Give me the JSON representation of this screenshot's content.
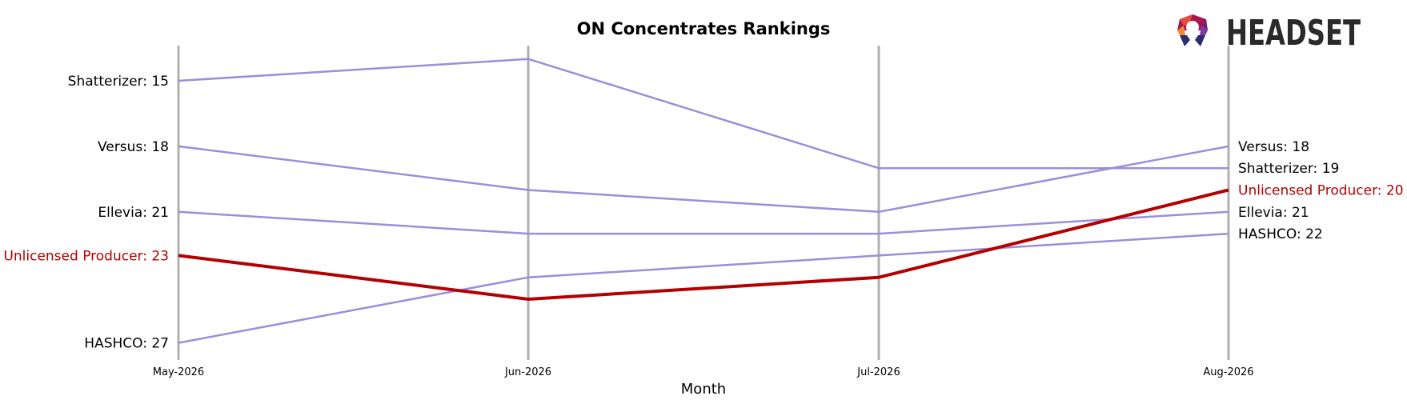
{
  "chart_data": {
    "type": "line",
    "title": "ON Concentrates Rankings",
    "xlabel": "Month",
    "ylabel": "",
    "categories": [
      "May-2026",
      "Jun-2026",
      "Jul-2026",
      "Aug-2026"
    ],
    "y_inverted": true,
    "ylim": [
      14,
      28
    ],
    "grid": false,
    "series": [
      {
        "name": "Shatterizer",
        "values": [
          15,
          14,
          19,
          19
        ],
        "color": "#9b8edb",
        "highlight": false
      },
      {
        "name": "Versus",
        "values": [
          18,
          20,
          21,
          18
        ],
        "color": "#9b8edb",
        "highlight": false
      },
      {
        "name": "Ellevia",
        "values": [
          21,
          22,
          22,
          21
        ],
        "color": "#9b8edb",
        "highlight": false
      },
      {
        "name": "Unlicensed Producer",
        "values": [
          23,
          25,
          24,
          20
        ],
        "color": "#b30000",
        "highlight": true
      },
      {
        "name": "HASHCO",
        "values": [
          27,
          24,
          23,
          22
        ],
        "color": "#9b8edb",
        "highlight": false
      }
    ],
    "left_labels": [
      {
        "series": "Shatterizer",
        "text": "Shatterizer: 15"
      },
      {
        "series": "Versus",
        "text": "Versus: 18"
      },
      {
        "series": "Ellevia",
        "text": "Ellevia: 21"
      },
      {
        "series": "Unlicensed Producer",
        "text": "Unlicensed Producer: 23"
      },
      {
        "series": "HASHCO",
        "text": "HASHCO: 27"
      }
    ],
    "right_labels": [
      {
        "series": "Versus",
        "text": "Versus: 18"
      },
      {
        "series": "Shatterizer",
        "text": "Shatterizer: 19"
      },
      {
        "series": "Unlicensed Producer",
        "text": "Unlicensed Producer: 20"
      },
      {
        "series": "Ellevia",
        "text": "Ellevia: 21"
      },
      {
        "series": "HASHCO",
        "text": "HASHCO: 22"
      }
    ]
  },
  "logo": {
    "text": "HEADSET"
  },
  "colors": {
    "axis_line": "#b0b0b0",
    "highlight_label": "#b30000",
    "default_label": "#000000"
  }
}
